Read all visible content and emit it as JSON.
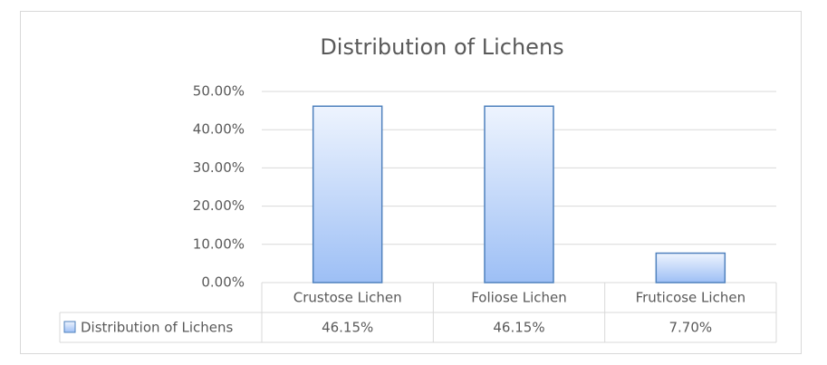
{
  "chart_data": {
    "type": "bar",
    "title": "Distribution of Lichens",
    "categories": [
      "Crustose Lichen",
      "Foliose Lichen",
      "Fruticose Lichen"
    ],
    "series": [
      {
        "name": "Distribution of Lichens",
        "color": "#9dbff5",
        "values": [
          46.15,
          46.15,
          7.7
        ],
        "value_labels": [
          "46.15%",
          "46.15%",
          "7.70%"
        ]
      }
    ],
    "ylim": [
      0,
      50
    ],
    "yticks": [
      {
        "value": 0,
        "label": "0.00%"
      },
      {
        "value": 10,
        "label": "10.00%"
      },
      {
        "value": 20,
        "label": "20.00%"
      },
      {
        "value": 30,
        "label": "30.00%"
      },
      {
        "value": 40,
        "label": "40.00%"
      },
      {
        "value": 50,
        "label": "50.00%"
      }
    ],
    "grid": true
  }
}
